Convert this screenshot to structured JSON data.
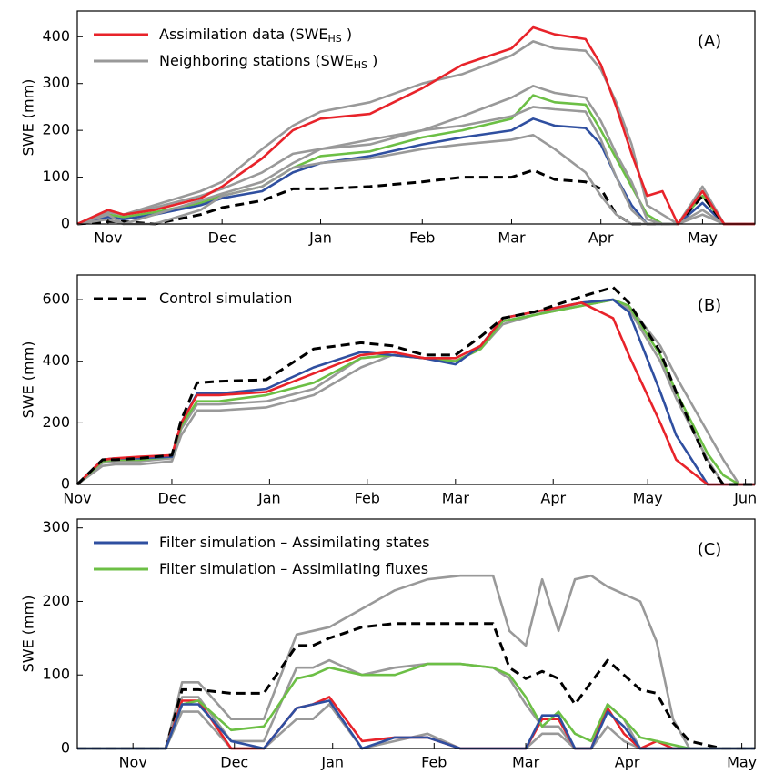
{
  "chart_data": [
    {
      "type": "line",
      "label": "(A)",
      "y_label": "SWE (mm)",
      "xlim": [
        0,
        220
      ],
      "ylim": [
        0,
        455
      ],
      "yticks": [
        0,
        100,
        200,
        300,
        400
      ],
      "xticks": [
        {
          "value": 10,
          "label": "Nov"
        },
        {
          "value": 47,
          "label": "Dec"
        },
        {
          "value": 79,
          "label": "Jan"
        },
        {
          "value": 112,
          "label": "Feb"
        },
        {
          "value": 141,
          "label": "Mar"
        },
        {
          "value": 170,
          "label": "Apr"
        },
        {
          "value": 203,
          "label": "May"
        }
      ],
      "x": [
        0,
        10,
        15,
        25,
        40,
        47,
        60,
        70,
        79,
        95,
        112,
        125,
        141,
        148,
        155,
        165,
        170,
        175,
        180,
        185,
        190,
        195,
        203,
        210,
        220
      ],
      "series": [
        {
          "name": [
            "Assimilation data (SWE",
            "HS",
            " )"
          ],
          "color": "#e8232a",
          "values": [
            0,
            30,
            20,
            30,
            55,
            80,
            140,
            200,
            225,
            235,
            290,
            340,
            375,
            420,
            405,
            395,
            340,
            250,
            150,
            60,
            70,
            0,
            70,
            0,
            0
          ]
        },
        {
          "name": [
            "Neighboring stations (SWE",
            "HS",
            " )"
          ],
          "color": "#999999",
          "values": [
            0,
            30,
            20,
            40,
            70,
            90,
            160,
            210,
            240,
            260,
            300,
            320,
            360,
            390,
            375,
            370,
            330,
            260,
            170,
            40,
            20,
            0,
            80,
            0,
            0
          ]
        },
        {
          "color": "#999999",
          "values": [
            0,
            25,
            20,
            35,
            60,
            75,
            110,
            150,
            160,
            180,
            200,
            230,
            270,
            295,
            280,
            270,
            220,
            150,
            90,
            10,
            0,
            0,
            70,
            0,
            0
          ]
        },
        {
          "color": "#999999",
          "values": [
            0,
            20,
            0,
            0,
            30,
            60,
            80,
            120,
            130,
            140,
            160,
            170,
            180,
            190,
            160,
            110,
            60,
            20,
            0,
            0,
            0,
            0,
            30,
            0,
            0
          ]
        },
        {
          "color": "#999999",
          "values": [
            0,
            10,
            0,
            20,
            50,
            65,
            90,
            130,
            160,
            170,
            200,
            210,
            230,
            250,
            245,
            240,
            180,
            100,
            30,
            0,
            0,
            0,
            20,
            0,
            0
          ]
        },
        {
          "color": "#000000",
          "dash": true,
          "values": [
            0,
            5,
            5,
            0,
            20,
            35,
            50,
            75,
            75,
            80,
            90,
            100,
            100,
            115,
            95,
            90,
            75,
            20,
            0,
            0,
            0,
            0,
            60,
            0,
            0
          ]
        },
        {
          "color": "#2f4fa0",
          "values": [
            0,
            15,
            10,
            20,
            40,
            55,
            70,
            110,
            130,
            145,
            170,
            185,
            200,
            225,
            210,
            205,
            170,
            100,
            40,
            0,
            0,
            0,
            45,
            0,
            0
          ]
        },
        {
          "color": "#6cbf45",
          "values": [
            0,
            20,
            15,
            25,
            45,
            60,
            80,
            120,
            145,
            155,
            185,
            200,
            225,
            275,
            260,
            255,
            200,
            140,
            80,
            20,
            0,
            0,
            60,
            0,
            0
          ]
        }
      ]
    },
    {
      "type": "line",
      "label": "(B)",
      "y_label": "SWE (mm)",
      "xlim": [
        0,
        215
      ],
      "ylim": [
        0,
        680
      ],
      "yticks": [
        0,
        200,
        400,
        600
      ],
      "xticks": [
        {
          "value": 0,
          "label": "Nov"
        },
        {
          "value": 30,
          "label": "Dec"
        },
        {
          "value": 61,
          "label": "Jan"
        },
        {
          "value": 92,
          "label": "Feb"
        },
        {
          "value": 120,
          "label": "Mar"
        },
        {
          "value": 151,
          "label": "Apr"
        },
        {
          "value": 181,
          "label": "May"
        },
        {
          "value": 212,
          "label": "Jun"
        }
      ],
      "x": [
        0,
        8,
        12,
        20,
        30,
        33,
        38,
        45,
        60,
        75,
        90,
        100,
        110,
        120,
        128,
        135,
        145,
        160,
        170,
        175,
        185,
        190,
        200,
        205,
        210,
        215
      ],
      "series": [
        {
          "name": [
            "Control simulation"
          ],
          "color": "#000000",
          "dash": true,
          "values": [
            0,
            80,
            80,
            85,
            95,
            210,
            330,
            335,
            340,
            440,
            460,
            450,
            420,
            420,
            480,
            540,
            560,
            610,
            640,
            590,
            430,
            300,
            70,
            0,
            0,
            0
          ]
        },
        {
          "color": "#e8232a",
          "values": [
            0,
            80,
            85,
            90,
            95,
            200,
            290,
            290,
            300,
            360,
            420,
            430,
            410,
            410,
            450,
            540,
            560,
            590,
            540,
            420,
            200,
            80,
            0,
            0,
            0,
            0
          ]
        },
        {
          "color": "#2f4fa0",
          "values": [
            0,
            80,
            85,
            85,
            90,
            200,
            295,
            295,
            310,
            380,
            430,
            420,
            410,
            390,
            450,
            540,
            560,
            590,
            600,
            560,
            300,
            160,
            0,
            0,
            0,
            0
          ]
        },
        {
          "color": "#6cbf45",
          "values": [
            0,
            75,
            80,
            80,
            90,
            190,
            270,
            270,
            290,
            330,
            410,
            420,
            410,
            400,
            440,
            530,
            550,
            580,
            600,
            580,
            420,
            300,
            100,
            30,
            0,
            0
          ]
        },
        {
          "color": "#999999",
          "values": [
            0,
            60,
            65,
            65,
            75,
            160,
            240,
            240,
            250,
            290,
            380,
            420,
            410,
            400,
            440,
            520,
            550,
            590,
            600,
            580,
            450,
            350,
            170,
            80,
            0,
            0
          ]
        },
        {
          "color": "#999999",
          "values": [
            0,
            70,
            75,
            75,
            85,
            180,
            260,
            260,
            270,
            310,
            410,
            420,
            410,
            400,
            440,
            530,
            550,
            580,
            600,
            570,
            400,
            280,
            80,
            0,
            0,
            0
          ]
        }
      ]
    },
    {
      "type": "line",
      "label": "(C)",
      "y_label": "SWE (mm)",
      "xlim": [
        -17,
        190
      ],
      "ylim": [
        0,
        312
      ],
      "yticks": [
        0,
        100,
        200,
        300
      ],
      "xticks": [
        {
          "value": 0,
          "label": "Nov"
        },
        {
          "value": 31,
          "label": "Dec"
        },
        {
          "value": 61,
          "label": "Jan"
        },
        {
          "value": 92,
          "label": "Feb"
        },
        {
          "value": 120,
          "label": "Mar"
        },
        {
          "value": 151,
          "label": "Apr"
        },
        {
          "value": 186,
          "label": "May"
        }
      ],
      "x": [
        -17,
        0,
        10,
        15,
        20,
        30,
        40,
        50,
        55,
        60,
        70,
        80,
        90,
        100,
        110,
        115,
        120,
        125,
        130,
        135,
        140,
        145,
        150,
        155,
        160,
        165,
        170,
        175,
        180,
        190
      ],
      "series": [
        {
          "name": [
            "Filter simulation – Assimilating states"
          ],
          "color": "#2f4fa0",
          "values": [
            0,
            0,
            0,
            60,
            60,
            10,
            0,
            55,
            60,
            65,
            0,
            15,
            15,
            0,
            0,
            0,
            0,
            45,
            45,
            0,
            0,
            50,
            30,
            0,
            0,
            0,
            0,
            0,
            0,
            0
          ]
        },
        {
          "name": [
            "Filter simulation – Assimilating fluxes"
          ],
          "color": "#6cbf45",
          "values": [
            0,
            0,
            0,
            60,
            65,
            25,
            30,
            95,
            100,
            110,
            100,
            100,
            115,
            115,
            110,
            100,
            70,
            30,
            50,
            20,
            10,
            60,
            40,
            15,
            10,
            5,
            0,
            0,
            0,
            0
          ]
        },
        {
          "color": "#e8232a",
          "values": [
            0,
            0,
            0,
            65,
            65,
            0,
            0,
            55,
            60,
            70,
            10,
            15,
            15,
            0,
            0,
            0,
            0,
            40,
            40,
            0,
            0,
            55,
            20,
            0,
            10,
            0,
            0,
            0,
            0,
            0
          ]
        },
        {
          "color": "#000000",
          "dash": true,
          "values": [
            0,
            0,
            0,
            80,
            80,
            75,
            75,
            140,
            140,
            150,
            165,
            170,
            170,
            170,
            170,
            110,
            95,
            105,
            95,
            60,
            90,
            120,
            100,
            80,
            75,
            35,
            10,
            5,
            0,
            0
          ]
        },
        {
          "color": "#999999",
          "values": [
            0,
            0,
            0,
            90,
            90,
            40,
            40,
            155,
            160,
            165,
            190,
            215,
            230,
            235,
            235,
            160,
            140,
            230,
            160,
            230,
            235,
            220,
            210,
            200,
            145,
            40,
            0,
            0,
            0,
            0
          ]
        },
        {
          "color": "#999999",
          "values": [
            0,
            0,
            0,
            70,
            70,
            10,
            10,
            110,
            110,
            120,
            100,
            110,
            115,
            115,
            110,
            95,
            60,
            30,
            30,
            0,
            0,
            60,
            40,
            0,
            0,
            0,
            0,
            0,
            0,
            0
          ]
        },
        {
          "color": "#999999",
          "values": [
            0,
            0,
            0,
            50,
            50,
            0,
            0,
            40,
            40,
            60,
            0,
            10,
            20,
            0,
            0,
            0,
            0,
            20,
            20,
            0,
            0,
            30,
            10,
            0,
            0,
            0,
            0,
            0,
            0,
            0
          ]
        }
      ]
    }
  ]
}
